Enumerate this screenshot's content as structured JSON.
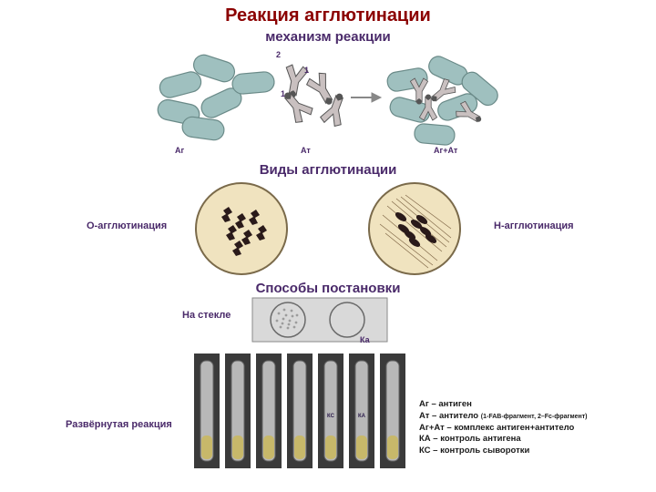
{
  "title": "Реакция агглютинации",
  "title_color": "#8b0000",
  "subtitle_mechanism": "механизм реакции",
  "subtitle_types": "Виды агглютинации",
  "subtitle_methods": "Способы постановки",
  "subtitle_color": "#4a2a6a",
  "mech": {
    "labels": {
      "ag": "Аг",
      "at": "Ат",
      "agat": "Аг+Ат",
      "n1": "1",
      "n1b": "1",
      "n2": "2"
    },
    "colors": {
      "bacteria_fill": "#9fc0bf",
      "bacteria_stroke": "#6a8a88",
      "antibody_fill": "#c9c0c0",
      "antibody_stroke": "#555555",
      "arrow": "#888888"
    }
  },
  "types": {
    "left_label": "О-агглютинация",
    "right_label": "Н-агглютинация",
    "dish_fill": "#f0e3bf",
    "dish_stroke": "#7a6a4a",
    "clump_color": "#2a1a1a",
    "flagella_color": "#7a6040"
  },
  "methods": {
    "on_glass_label": "На стекле",
    "ka_label": "Ка",
    "extended_label": "Развёрнутая реакция",
    "slide_fill": "#d9d9d9",
    "slide_stroke": "#8a8a8a",
    "circle_stroke": "#6a6a6a",
    "granule_color": "#9c9c9c",
    "tube_bg": "#3a3a3a",
    "tube_glass": "#b8b8b8",
    "tube_liquid": "#c7b86a",
    "tube_count": 7,
    "tube_labels": [
      "",
      "",
      "",
      "",
      "КС",
      "КА",
      ""
    ]
  },
  "legend": {
    "l1_a": "Аг – антиген",
    "l2_a": "Ат – антитело ",
    "l2_b": "(1-FAB-фрагмент, 2–Fc-фрагмент)",
    "l3_a": "Аг+Ат – комплекс антиген+антитело",
    "l4_a": "КА – контроль антигена",
    "l5_a": "КС – контроль сыворотки",
    "color": "#1a1a1a"
  }
}
